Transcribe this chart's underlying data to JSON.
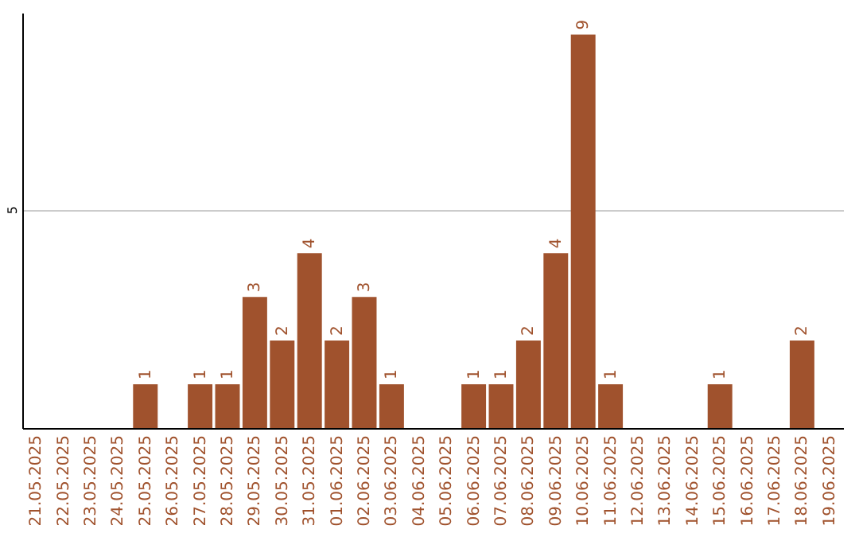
{
  "chart_data": {
    "type": "bar",
    "categories": [
      "21.05.2025",
      "22.05.2025",
      "23.05.2025",
      "24.05.2025",
      "25.05.2025",
      "26.05.2025",
      "27.05.2025",
      "28.05.2025",
      "29.05.2025",
      "30.05.2025",
      "31.05.2025",
      "01.06.2025",
      "02.06.2025",
      "03.06.2025",
      "04.06.2025",
      "05.06.2025",
      "06.06.2025",
      "07.06.2025",
      "08.06.2025",
      "09.06.2025",
      "10.06.2025",
      "11.06.2025",
      "12.06.2025",
      "13.06.2025",
      "14.06.2025",
      "15.06.2025",
      "16.06.2025",
      "17.06.2025",
      "18.06.2025",
      "19.06.2025"
    ],
    "values": [
      null,
      null,
      null,
      null,
      1,
      null,
      1,
      1,
      3,
      2,
      4,
      2,
      3,
      1,
      null,
      null,
      1,
      1,
      2,
      4,
      9,
      1,
      null,
      null,
      null,
      1,
      null,
      null,
      2,
      null
    ],
    "color": "#a0522d",
    "ylim": [
      0,
      9.5
    ],
    "yticks": [
      5
    ],
    "grid": "y",
    "data_labels": true
  }
}
